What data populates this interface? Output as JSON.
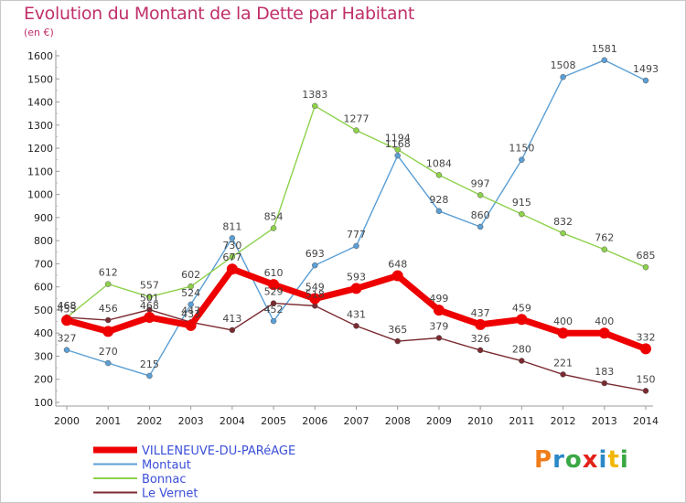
{
  "title": "Evolution du Montant de la Dette par Habitant",
  "unit": "(en €)",
  "logo": "Proxiti",
  "colors": {
    "title": "#c0306a",
    "logo": [
      "#f07d1a",
      "#2b88c8",
      "#3aa845",
      "#e2231a",
      "#2b88c8",
      "#f2b705",
      "#3aa845"
    ]
  },
  "chart_data": {
    "type": "line",
    "x": [
      2000,
      2001,
      2002,
      2003,
      2004,
      2005,
      2006,
      2007,
      2008,
      2009,
      2010,
      2011,
      2012,
      2013,
      2014
    ],
    "ylim": [
      100,
      1600
    ],
    "yticks": [
      100,
      200,
      300,
      400,
      500,
      600,
      700,
      800,
      900,
      1000,
      1100,
      1200,
      1300,
      1400,
      1500,
      1600
    ],
    "grid": false,
    "legend_position": "bottom-left",
    "series": [
      {
        "name": "VILLENEUVE-DU-PARéAGE",
        "color": "#ee0000",
        "values": [
          455,
          407,
          468,
          433,
          677,
          610,
          549,
          593,
          648,
          499,
          437,
          459,
          400,
          400,
          332
        ],
        "labels": [
          "455",
          "",
          "468",
          "433",
          "677",
          "610",
          "549",
          "593",
          "648",
          "499",
          "437",
          "459",
          "400",
          "400",
          "332"
        ]
      },
      {
        "name": "Montaut",
        "color": "#5b9fd5",
        "values": [
          327,
          270,
          215,
          524,
          811,
          452,
          693,
          777,
          1168,
          928,
          860,
          1150,
          1508,
          1581,
          1493
        ],
        "labels": [
          "327",
          "270",
          "215",
          "524",
          "811",
          "452",
          "693",
          "777",
          "1168",
          "928",
          "860",
          "1150",
          "1508",
          "1581",
          "1493"
        ]
      },
      {
        "name": "Bonnac",
        "color": "#8ed14b",
        "values": [
          468,
          612,
          557,
          602,
          730,
          854,
          1383,
          1277,
          1194,
          1084,
          997,
          915,
          832,
          762,
          685
        ],
        "labels": [
          "468",
          "612",
          "557",
          "602",
          "730",
          "854",
          "1383",
          "1277",
          "1194",
          "1084",
          "997",
          "915",
          "832",
          "762",
          "685"
        ]
      },
      {
        "name": "Le Vernet",
        "color": "#7a2a30",
        "values": [
          468,
          456,
          501,
          447,
          413,
          529,
          518,
          431,
          365,
          379,
          326,
          280,
          221,
          183,
          150
        ],
        "labels": [
          "468",
          "456",
          "501",
          "447",
          "413",
          "529",
          "518",
          "431",
          "365",
          "379",
          "326",
          "280",
          "221",
          "183",
          "150"
        ]
      }
    ]
  }
}
